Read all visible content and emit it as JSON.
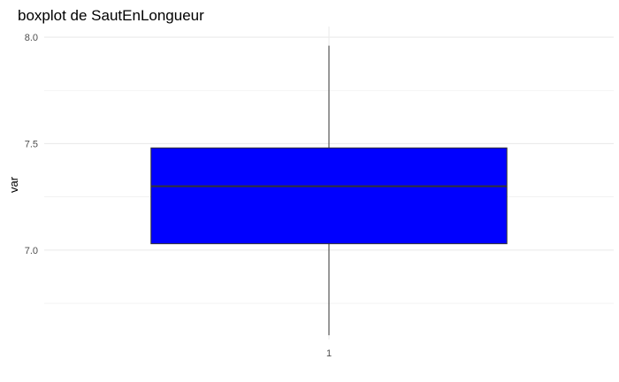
{
  "chart_data": {
    "type": "boxplot",
    "title": "boxplot de SautEnLongueur",
    "xlabel": "",
    "ylabel": "var",
    "categories": [
      "1"
    ],
    "boxes": [
      {
        "category": "1",
        "min": 6.6,
        "q1": 7.03,
        "median": 7.3,
        "q3": 7.48,
        "max": 7.96
      }
    ],
    "ylim": [
      6.58,
      8.05
    ],
    "yticks": [
      7.0,
      7.5,
      8.0
    ],
    "ytick_labels": [
      "7.0",
      "7.5",
      "8.0"
    ],
    "ygrid_minor": [
      6.75,
      7.25,
      7.75
    ],
    "grid": true,
    "fill_color": "#0000ff",
    "line_color": "#333333",
    "grid_color": "#ebebeb"
  }
}
